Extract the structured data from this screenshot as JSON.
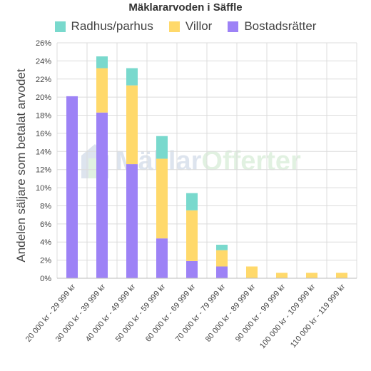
{
  "chart_data": {
    "type": "bar",
    "stacked": true,
    "title": "Mäklararvoden i Säffle",
    "ylabel": "Andelen säljare som betalat arvodet",
    "xlabel": "",
    "ylim": [
      0,
      26
    ],
    "yticks": [
      "0%",
      "2%",
      "4%",
      "6%",
      "8%",
      "10%",
      "12%",
      "14%",
      "16%",
      "18%",
      "20%",
      "22%",
      "24%",
      "26%"
    ],
    "grid": true,
    "legend_position": "top",
    "categories": [
      "20 000 kr - 29 999 kr",
      "30 000 kr - 39 999 kr",
      "40 000 kr - 49 999 kr",
      "50 000 kr - 59 999 kr",
      "60 000 kr - 69 999 kr",
      "70 000 kr - 79 999 kr",
      "80 000 kr - 89 999 kr",
      "90 000 kr - 99 999 kr",
      "100 000 kr - 109 999 kr",
      "110 000 kr - 119 999 kr"
    ],
    "series": [
      {
        "name": "Bostadsrätter",
        "color": "#9d82f6",
        "values": [
          20.1,
          18.3,
          12.6,
          4.4,
          1.9,
          1.3,
          0,
          0,
          0,
          0
        ]
      },
      {
        "name": "Villor",
        "color": "#ffd96b",
        "values": [
          0,
          4.9,
          8.7,
          8.8,
          5.6,
          1.8,
          1.3,
          0.6,
          0.6,
          0.6
        ]
      },
      {
        "name": "Radhus/parhus",
        "color": "#79d9cd",
        "values": [
          0,
          1.3,
          1.9,
          2.5,
          1.9,
          0.6,
          0,
          0,
          0,
          0
        ]
      }
    ],
    "legend_order": [
      "Radhus/parhus",
      "Villor",
      "Bostadsrätter"
    ]
  },
  "watermark": {
    "text_part1": "Mäklar",
    "text_part2": "Offerter",
    "color1": "#4a6fa5",
    "color2": "#5cb85c"
  }
}
